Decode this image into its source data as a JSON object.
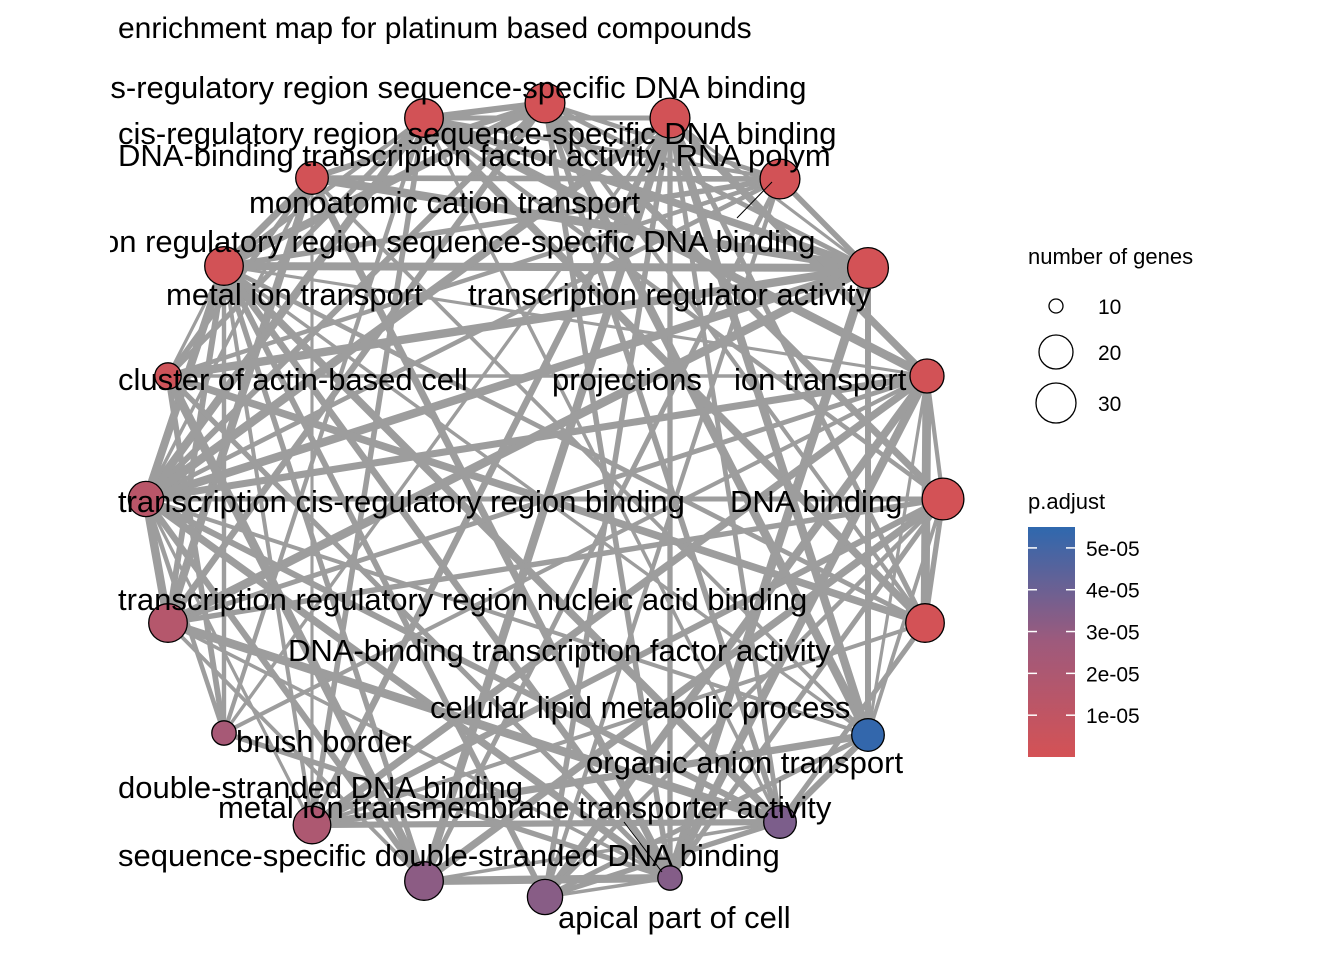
{
  "title": "enrichment map for platinum based compounds",
  "colors": {
    "low": "#d45255",
    "high": "#2f68ae",
    "edge": "#9d9d9d"
  },
  "nodes": [
    {
      "id": "n1",
      "label": "cis-regulatory region sequence-specific DNA binding",
      "genes": 30,
      "p": 5e-07
    },
    {
      "id": "n2",
      "label": "cis-regulatory region sequence-specific DNA binding",
      "genes": 28,
      "p": 1e-06
    },
    {
      "id": "n3",
      "label": "DNA-binding transcription factor activity, RNA polymerase II-specific",
      "genes": 30,
      "p": 8e-07
    },
    {
      "id": "n4",
      "label": "monoatomic cation transport",
      "genes": 18,
      "p": 1e-06
    },
    {
      "id": "n5",
      "label": "transcription regulatory region sequence-specific DNA binding",
      "genes": 28,
      "p": 8e-07
    },
    {
      "id": "n6",
      "label": "transcription cis-regulatory region binding",
      "genes": 30,
      "p": 9e-07
    },
    {
      "id": "n7",
      "label": "metal ion transport",
      "genes": 16,
      "p": 1e-06
    },
    {
      "id": "n8",
      "label": "transcription regulator activity",
      "genes": 32,
      "p": 5e-07
    },
    {
      "id": "n9",
      "label": "cluster of actin-based cell projections",
      "genes": 10,
      "p": 3e-06
    },
    {
      "id": "n10",
      "label": "monoatomic ion transport",
      "genes": 20,
      "p": 1e-06
    },
    {
      "id": "n11",
      "label": "transcription cis-regulatory region binding",
      "genes": 22,
      "p": 1.4e-05
    },
    {
      "id": "n12",
      "label": "DNA binding",
      "genes": 34,
      "p": 5e-07
    },
    {
      "id": "n13",
      "label": "transcription regulatory region nucleic acid binding",
      "genes": 28,
      "p": 1.6e-05
    },
    {
      "id": "n14",
      "label": "DNA-binding transcription factor activity",
      "genes": 28,
      "p": 5e-07
    },
    {
      "id": "n15",
      "label": "cellular lipid metabolic process",
      "genes": 18,
      "p": 5.4e-05
    },
    {
      "id": "n16",
      "label": "brush border",
      "genes": 8,
      "p": 2.3e-05
    },
    {
      "id": "n17",
      "label": "organic anion transport",
      "genes": 18,
      "p": 3.6e-05
    },
    {
      "id": "n18",
      "label": "double-stranded DNA binding",
      "genes": 26,
      "p": 2e-05
    },
    {
      "id": "n19",
      "label": "metal ion transmembrane transporter activity",
      "genes": 8,
      "p": 3.4e-05
    },
    {
      "id": "n20",
      "label": "sequence-specific double-stranded DNA binding",
      "genes": 28,
      "p": 3.2e-05
    },
    {
      "id": "n21",
      "label": "apical part of cell",
      "genes": 22,
      "p": 3.3e-05
    }
  ],
  "label_texts": [
    "cis-regulatory region sequence-specific DNA binding",
    "cis-regulatory region sequence-specific DNA binding",
    "DNA-binding transcription factor activity, RNA polym",
    "monoatomic cation transport",
    "on regulatory region sequence-specific DNA binding",
    "metal ion transport",
    "transcription regulator activity",
    "cluster of actin-based cell",
    "projections",
    "ion transport",
    "transcription cis-regulatory region binding",
    "DNA binding",
    "transcription regulatory region nucleic acid binding",
    "DNA-binding transcription factor activity",
    "cellular lipid metabolic process",
    "brush border",
    "organic anion transport",
    "double-stranded DNA binding",
    "metal ion transmembrane transporter activity",
    "sequence-specific double-stranded DNA binding",
    "apical part of cell"
  ],
  "legend": {
    "size_title": "number of genes",
    "size_items": [
      {
        "label": "10",
        "genes": 10
      },
      {
        "label": "20",
        "genes": 20
      },
      {
        "label": "30",
        "genes": 30
      }
    ],
    "color_title": "p.adjust",
    "color_ticks": [
      "5e-05",
      "4e-05",
      "3e-05",
      "2e-05",
      "1e-05"
    ],
    "color_range": [
      0,
      5.5e-05
    ]
  }
}
